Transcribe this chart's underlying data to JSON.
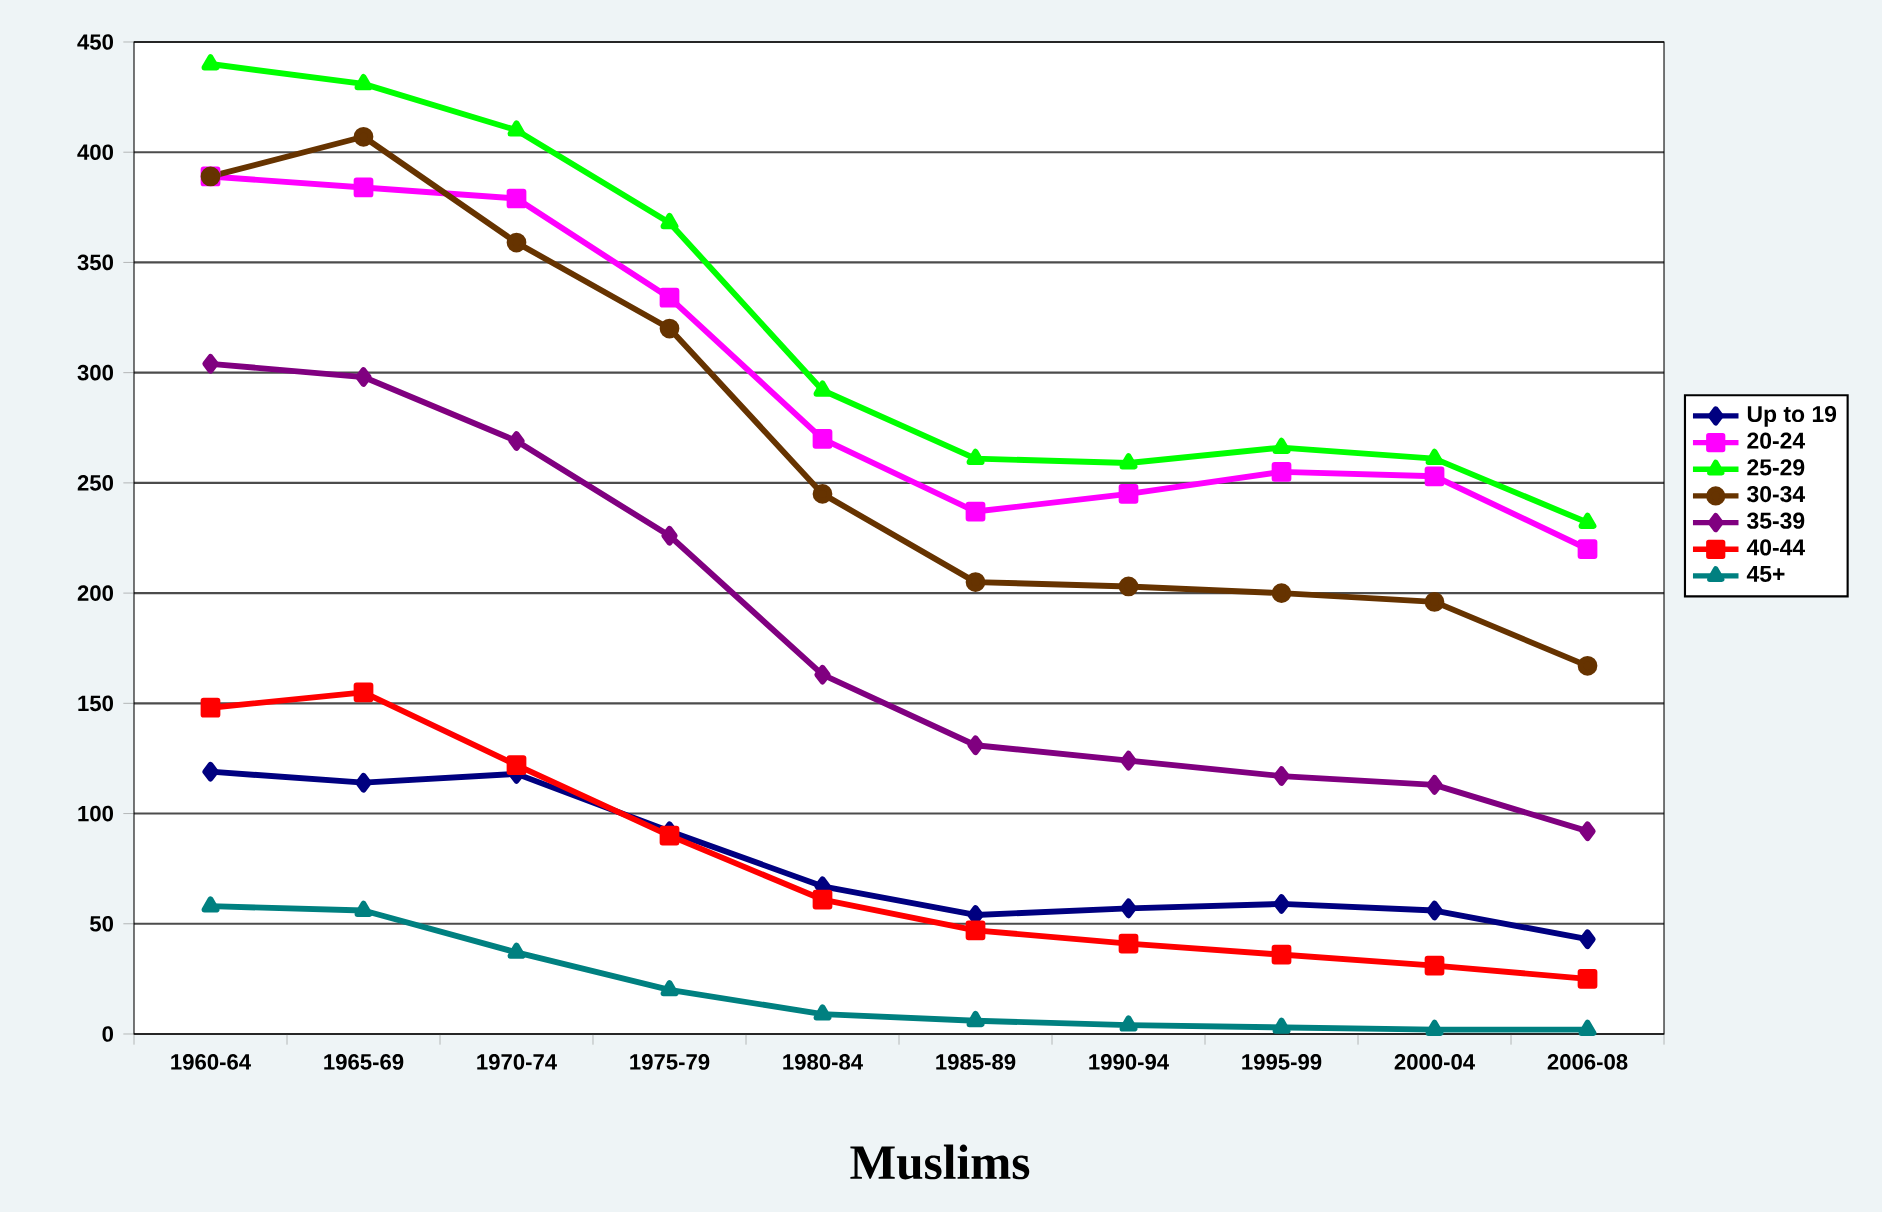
{
  "chart_data": {
    "type": "line",
    "title": "Muslims",
    "categories": [
      "1960-64",
      "1965-69",
      "1970-74",
      "1975-79",
      "1980-84",
      "1985-89",
      "1990-94",
      "1995-99",
      "2000-04",
      "2006-08"
    ],
    "series": [
      {
        "name": "Up to 19",
        "color": "#000080",
        "marker": "diamond",
        "values": [
          119,
          114,
          118,
          92,
          67,
          54,
          57,
          59,
          56,
          43
        ]
      },
      {
        "name": "20-24",
        "color": "#ff00ff",
        "marker": "square",
        "values": [
          389,
          384,
          379,
          334,
          270,
          237,
          245,
          255,
          253,
          220
        ]
      },
      {
        "name": "25-29",
        "color": "#00ff00",
        "marker": "triangle",
        "values": [
          440,
          431,
          410,
          368,
          292,
          261,
          259,
          266,
          261,
          232
        ]
      },
      {
        "name": "30-34",
        "color": "#663300",
        "marker": "circle",
        "values": [
          389,
          407,
          359,
          320,
          245,
          205,
          203,
          200,
          196,
          167
        ]
      },
      {
        "name": "35-39",
        "color": "#800080",
        "marker": "diamond",
        "values": [
          304,
          298,
          269,
          226,
          163,
          131,
          124,
          117,
          113,
          92
        ]
      },
      {
        "name": "40-44",
        "color": "#ff0000",
        "marker": "square",
        "values": [
          148,
          155,
          122,
          90,
          61,
          47,
          41,
          36,
          31,
          25
        ]
      },
      {
        "name": "45+",
        "color": "#008080",
        "marker": "triangle",
        "values": [
          58,
          56,
          37,
          20,
          9,
          6,
          4,
          3,
          2,
          2
        ]
      }
    ],
    "ylim": [
      0,
      450
    ],
    "yticks": [
      0,
      50,
      100,
      150,
      200,
      250,
      300,
      350,
      400,
      450
    ],
    "grid": "y",
    "legend": "right",
    "line_style": "solid"
  }
}
